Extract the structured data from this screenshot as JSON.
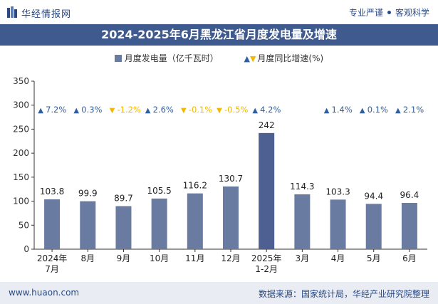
{
  "header": {
    "brand": "华经情报网",
    "tag1": "专业严谨",
    "tag2": "客观科学"
  },
  "title": "2024-2025年6月黑龙江省月度发电量及增速",
  "legend": {
    "bar_label": "月度发电量（亿千瓦时）",
    "growth_label": "月度同比增速(%)"
  },
  "footer": {
    "site": "www.huaon.com",
    "source": "数据来源：国家统计局，华经产业研究院整理"
  },
  "colors": {
    "bar": "#6a7ba2",
    "bar_highlight": "#4e6091",
    "up": "#2f5f9e",
    "down": "#f0b800",
    "title_bg": "#3f5a8f"
  },
  "chart_data": {
    "type": "bar",
    "categories": [
      "2024年\n7月",
      "8月",
      "9月",
      "10月",
      "11月",
      "12月",
      "2025年\n1-2月",
      "3月",
      "4月",
      "5月",
      "6月"
    ],
    "series": [
      {
        "name": "月度发电量（亿千瓦时）",
        "values": [
          103.8,
          99.9,
          89.7,
          105.5,
          116.2,
          130.7,
          242,
          114.3,
          103.3,
          94.4,
          96.4
        ]
      }
    ],
    "growth": [
      {
        "dir": "up",
        "label": "7.2%"
      },
      {
        "dir": "up",
        "label": "0.3%"
      },
      {
        "dir": "down",
        "label": "-1.2%"
      },
      {
        "dir": "up",
        "label": "2.6%"
      },
      {
        "dir": "down",
        "label": "-0.1%"
      },
      {
        "dir": "down",
        "label": "-0.5%"
      },
      {
        "dir": "up",
        "label": "4.2%"
      },
      {
        "dir": "none",
        "label": ""
      },
      {
        "dir": "up",
        "label": "1.4%"
      },
      {
        "dir": "up",
        "label": "0.1%"
      },
      {
        "dir": "up",
        "label": "2.1%"
      }
    ],
    "yticks": [
      0,
      50,
      100,
      150,
      200,
      250,
      300,
      350
    ],
    "ylim": [
      0,
      350
    ],
    "grid": false
  }
}
